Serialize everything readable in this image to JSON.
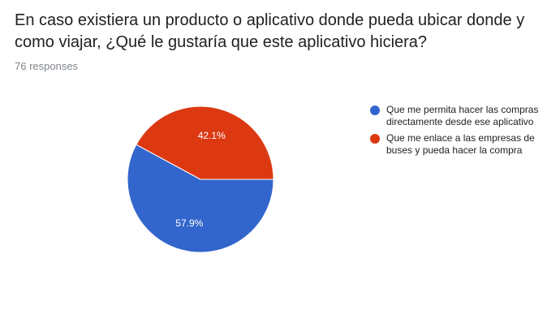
{
  "question": {
    "title": "En caso existiera un producto o aplicativo donde pueda ubicar donde y como viajar, ¿Qué le gustaría que este aplicativo hiciera?",
    "responses": "76 responses"
  },
  "chart_data": {
    "type": "pie",
    "legend_position": "right",
    "series": [
      {
        "name": "Que me permita hacer las compras directamente desde ese aplicativo",
        "value": 57.9,
        "label": "57.9%",
        "color": "#3366cc"
      },
      {
        "name": "Que me enlace a las empresas de buses y pueda hacer la compra",
        "value": 42.1,
        "label": "42.1%",
        "color": "#dc3912"
      }
    ]
  }
}
